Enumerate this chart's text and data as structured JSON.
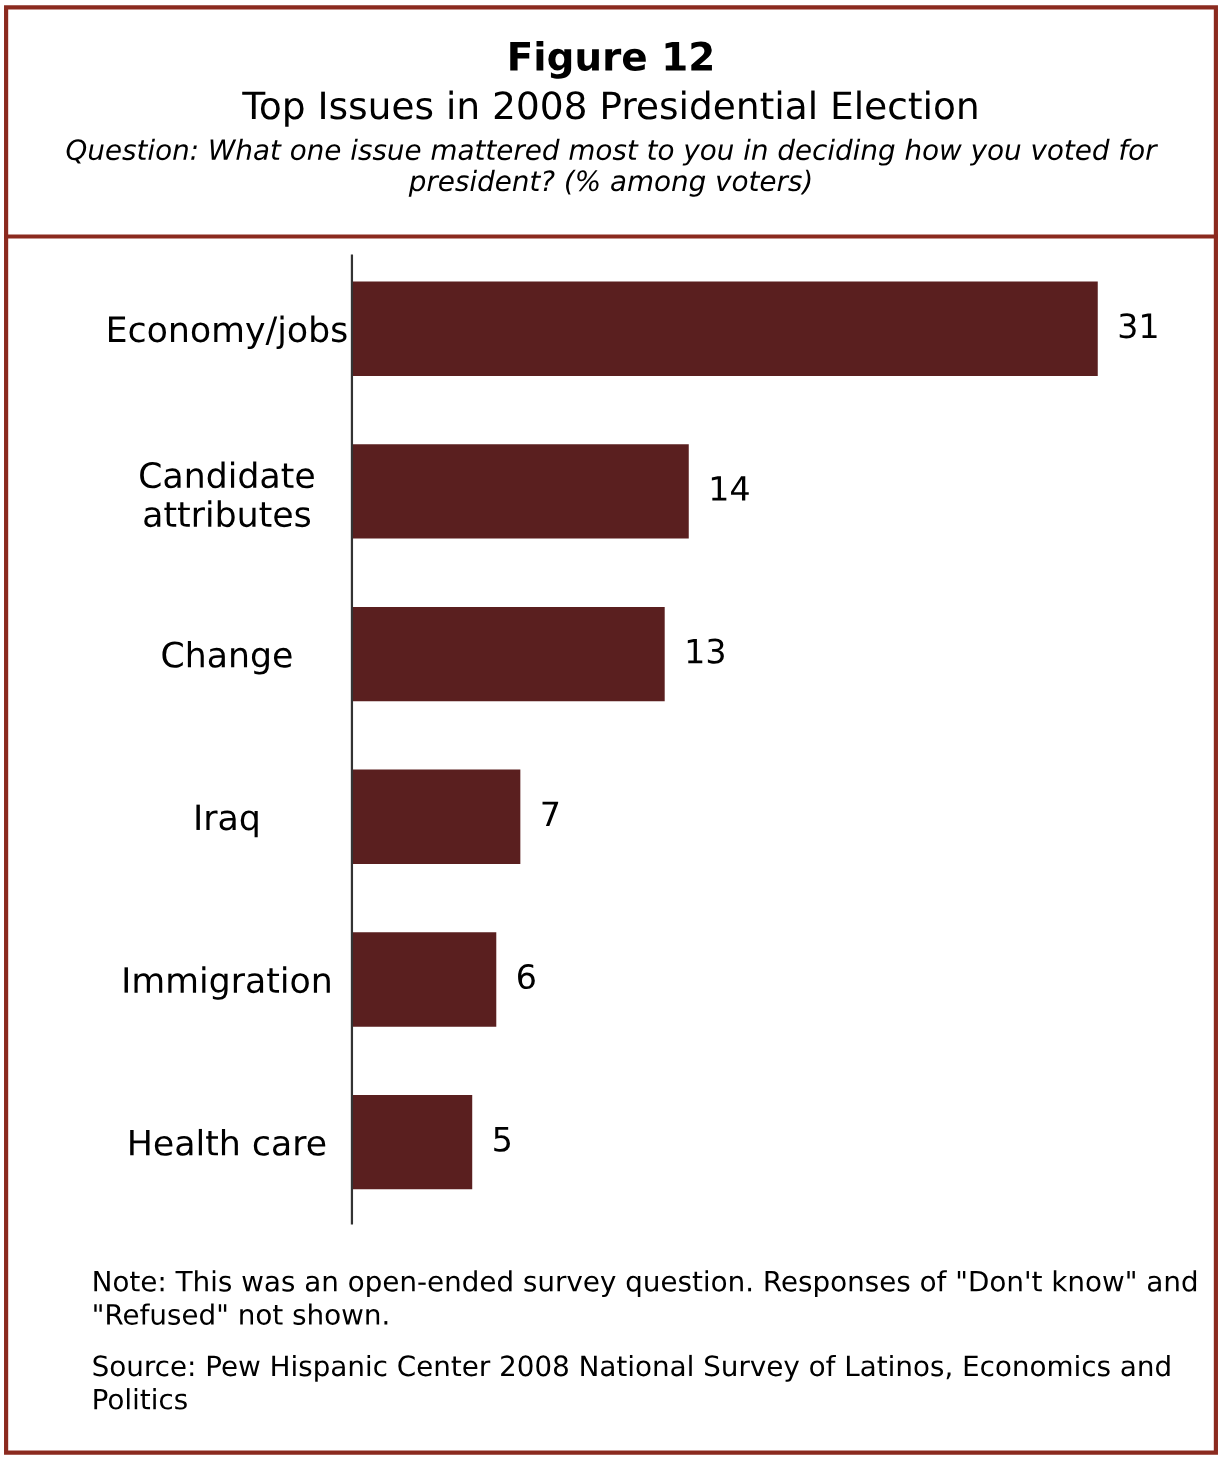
{
  "chart_data": {
    "type": "bar",
    "orientation": "horizontal",
    "title": "Figure 12",
    "subtitle": "Top Issues in 2008 Presidential Election",
    "categories": [
      "Economy/jobs",
      "Candidate\nattributes",
      "Change",
      "Iraq",
      "Immigration",
      "Health care"
    ],
    "values": [
      31,
      14,
      13,
      7,
      6,
      5
    ],
    "color": "#5a1f1f",
    "data_labels": true,
    "tick_labels": "y",
    "grid": false,
    "legend": false,
    "annotations": [
      "Question: What one issue mattered most to you in deciding how you voted for president? (% among voters)",
      "Note: This was an open-ended survey question. Responses of \"Don't know\" and \"Refused\" not shown.",
      "Source: Pew Hispanic Center 2008 National Survey of Latinos, Economics and Politics"
    ]
  }
}
